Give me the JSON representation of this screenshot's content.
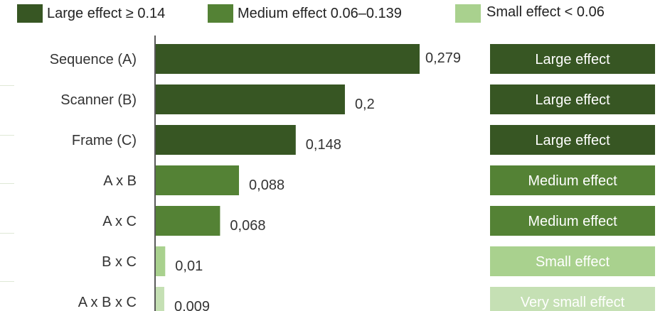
{
  "colors": {
    "large": "#375623",
    "medium": "#548235",
    "small": "#a9d18e",
    "very_small": "#c5e0b4",
    "axis": "#222222"
  },
  "legend": [
    {
      "label": "Large effect ≥ 0.14",
      "color": "#375623"
    },
    {
      "label": "Medium effect 0.06–0.139",
      "color": "#548235"
    },
    {
      "label": "Small effect < 0.06",
      "color": "#a9d18e"
    }
  ],
  "chart_data": {
    "type": "bar",
    "orientation": "horizontal",
    "title": "",
    "xlabel": "",
    "ylabel": "",
    "categories": [
      "Sequence (A)",
      "Scanner (B)",
      "Frame (C)",
      "A x B",
      "A x C",
      "B x C",
      "A x B x C"
    ],
    "values": [
      0.279,
      0.2,
      0.148,
      0.088,
      0.068,
      0.01,
      0.009
    ],
    "value_labels": [
      "0,279",
      "0,2",
      "0,148",
      "0,088",
      "0,068",
      "0,01",
      "0,009"
    ],
    "effect_labels": [
      "Large effect",
      "Large effect",
      "Large effect",
      "Medium effect",
      "Medium effect",
      "Small effect",
      "Very small effect"
    ],
    "effect_classes": [
      "large",
      "large",
      "large",
      "medium",
      "medium",
      "small",
      "very_small"
    ],
    "xlim": [
      0,
      0.3
    ],
    "grid": false,
    "legend_position": "top"
  }
}
